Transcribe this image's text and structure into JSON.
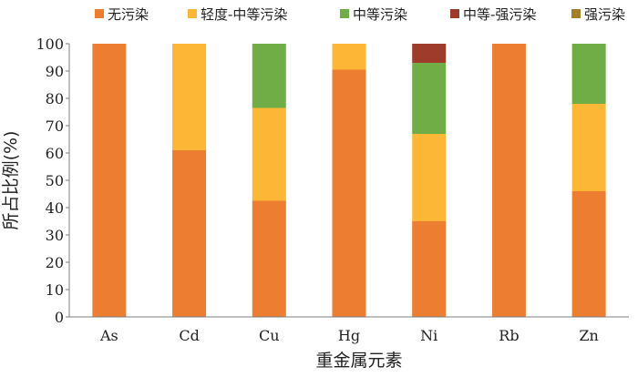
{
  "chart_data": {
    "type": "bar",
    "stacked": true,
    "categories": [
      "As",
      "Cd",
      "Cu",
      "Hg",
      "Ni",
      "Rb",
      "Zn"
    ],
    "series": [
      {
        "name": "无污染",
        "color": "#ED7D31",
        "values": [
          100,
          61,
          42.5,
          90.5,
          35,
          100,
          46
        ]
      },
      {
        "name": "轻度-中等污染",
        "color": "#FBB735",
        "values": [
          0,
          39,
          34,
          9.5,
          32,
          0,
          32
        ]
      },
      {
        "name": "中等污染",
        "color": "#70AD47",
        "values": [
          0,
          0,
          23.5,
          0,
          26,
          0,
          22
        ]
      },
      {
        "name": "中等-强污染",
        "color": "#9E3B2A",
        "values": [
          0,
          0,
          0,
          0,
          7,
          0,
          0
        ]
      },
      {
        "name": "强污染",
        "color": "#A57C27",
        "values": [
          0,
          0,
          0,
          0,
          0,
          0,
          0
        ]
      }
    ],
    "xlabel": "重金属元素",
    "ylabel": "所占比例(%)",
    "ylim": [
      0,
      100
    ],
    "yticks": [
      0,
      10,
      20,
      30,
      40,
      50,
      60,
      70,
      80,
      90,
      100
    ],
    "grid": false,
    "legend": "top"
  }
}
